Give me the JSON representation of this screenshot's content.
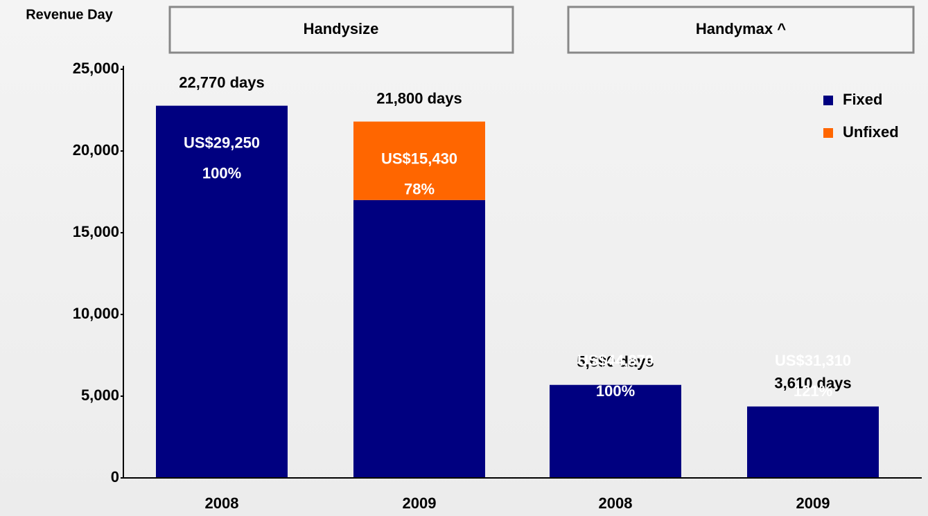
{
  "chart_data": {
    "type": "stacked_bar",
    "y_label": "Revenue Day",
    "groups": [
      "Handysize",
      "Handymax ^"
    ],
    "categories": [
      "2008",
      "2009",
      "2008",
      "2009"
    ],
    "series": [
      {
        "name": "Fixed",
        "color": "#000080",
        "values": [
          22770,
          17000,
          5690,
          4370
        ]
      },
      {
        "name": "Unfixed",
        "color": "#ff6600",
        "values": [
          null,
          4800,
          null,
          null
        ]
      }
    ],
    "total_labels": [
      "22,770 days",
      "21,800 days",
      "5,690 days",
      "3,610 days"
    ],
    "rate_labels": [
      "US$29,250",
      "US$15,430",
      "US$44,870",
      "US$31,310"
    ],
    "pct_labels": [
      "100%",
      "78%",
      "100%",
      "121%"
    ],
    "ylim": [
      0,
      25000
    ],
    "yticks": [
      0,
      {
        "value": 5000,
        "label": "5,000"
      },
      {
        "value": 10000,
        "label": "10,000"
      },
      {
        "value": 15000,
        "label": "15,000"
      },
      {
        "value": 20000,
        "label": "20,000"
      },
      {
        "value": 25000,
        "label": "25,000"
      }
    ]
  }
}
